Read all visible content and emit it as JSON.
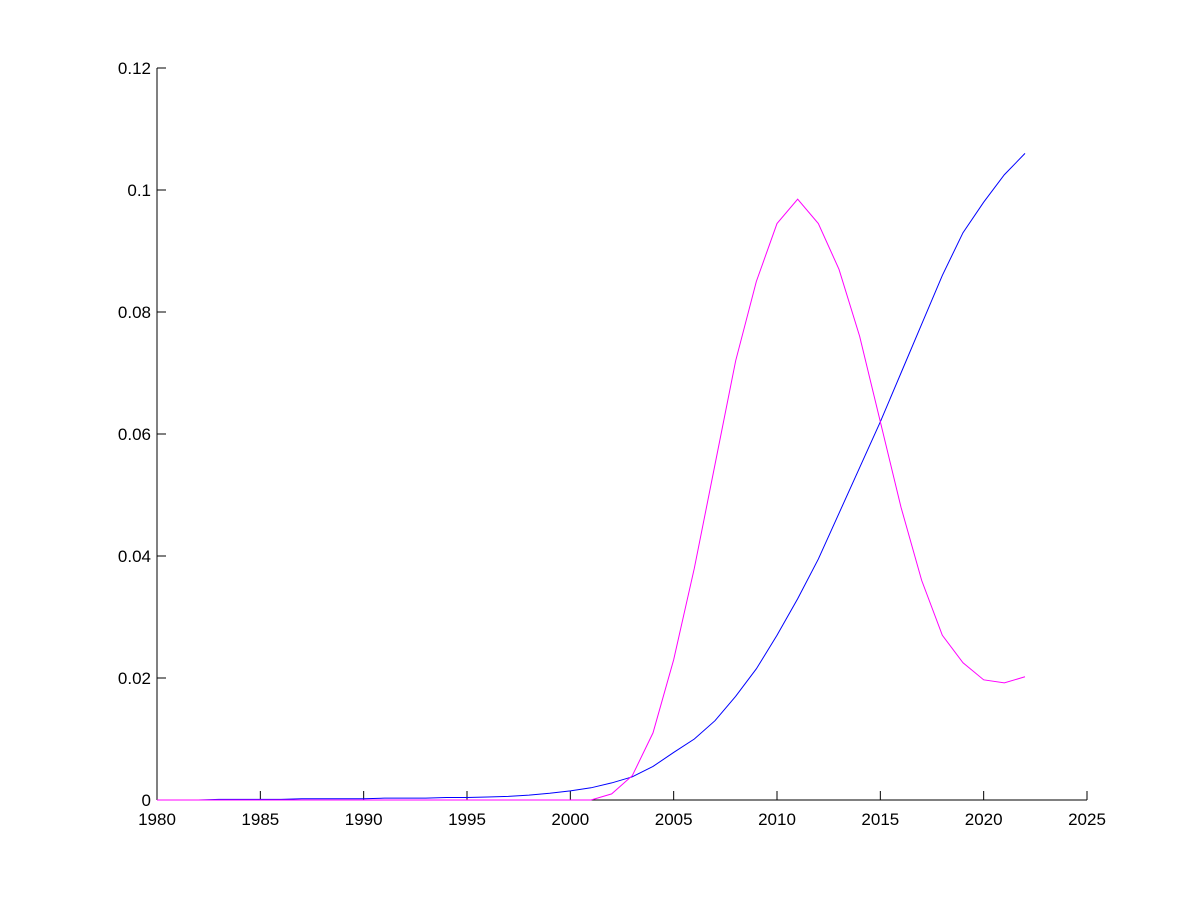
{
  "chart_data": {
    "type": "line",
    "x": [
      1980,
      1981,
      1982,
      1983,
      1984,
      1985,
      1986,
      1987,
      1988,
      1989,
      1990,
      1991,
      1992,
      1993,
      1994,
      1995,
      1996,
      1997,
      1998,
      1999,
      2000,
      2001,
      2002,
      2003,
      2004,
      2005,
      2006,
      2007,
      2008,
      2009,
      2010,
      2011,
      2012,
      2013,
      2014,
      2015,
      2016,
      2017,
      2018,
      2019,
      2020,
      2021,
      2022
    ],
    "series": [
      {
        "color": "#0000ff",
        "values": [
          0,
          0,
          0,
          0.0001,
          0.0001,
          0.0001,
          0.0001,
          0.0002,
          0.0002,
          0.0002,
          0.0002,
          0.0003,
          0.0003,
          0.0003,
          0.0004,
          0.0004,
          0.0005,
          0.0006,
          0.0008,
          0.0011,
          0.0015,
          0.002,
          0.0028,
          0.0038,
          0.0055,
          0.0078,
          0.01,
          0.013,
          0.017,
          0.0215,
          0.027,
          0.033,
          0.0395,
          0.047,
          0.0545,
          0.062,
          0.07,
          0.078,
          0.086,
          0.093,
          0.098,
          0.1025,
          0.106
        ]
      },
      {
        "color": "#ff00ff",
        "values": [
          0,
          0,
          0,
          0,
          0,
          0,
          0,
          0,
          0,
          0,
          0,
          0,
          0,
          0,
          0,
          0,
          0,
          0,
          0,
          0,
          0,
          0,
          0.001,
          0.004,
          0.011,
          0.023,
          0.038,
          0.055,
          0.072,
          0.085,
          0.0945,
          0.0985,
          0.0945,
          0.087,
          0.076,
          0.062,
          0.048,
          0.036,
          0.027,
          0.0225,
          0.0197,
          0.0192,
          0.0202
        ]
      }
    ],
    "xlim": [
      1980,
      2025
    ],
    "xticks": [
      1980,
      1985,
      1990,
      1995,
      2000,
      2005,
      2010,
      2015,
      2020,
      2025
    ],
    "ylim": [
      0,
      0.12
    ],
    "yticks": [
      0,
      0.02,
      0.04,
      0.06,
      0.08,
      0.1,
      0.12
    ]
  }
}
